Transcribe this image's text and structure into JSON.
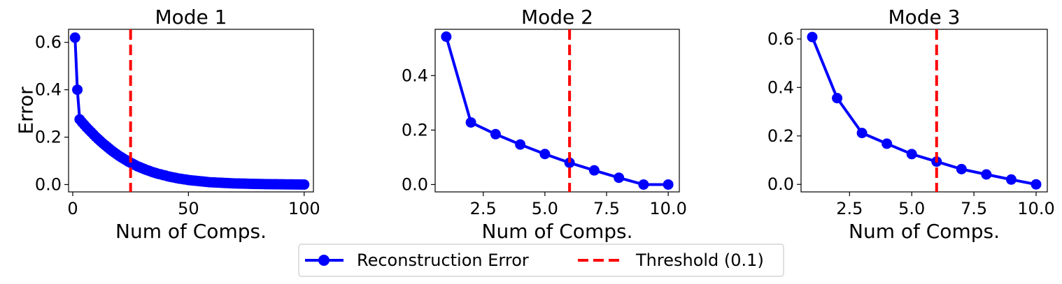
{
  "chart_data": [
    {
      "type": "line",
      "title": "Mode 1",
      "xlabel": "Num of Comps.",
      "ylabel": "Error",
      "xlim": [
        -1.8,
        104
      ],
      "ylim": [
        -0.031,
        0.655
      ],
      "xticks": [
        0,
        50,
        100
      ],
      "xtick_labels": [
        "0",
        "50",
        "100"
      ],
      "yticks": [
        0.0,
        0.2,
        0.4,
        0.6
      ],
      "ytick_labels": [
        "0.0",
        "0.2",
        "0.4",
        "0.6"
      ],
      "threshold_x": 25,
      "series": [
        {
          "name": "Reconstruction Error",
          "color": "#0000ff",
          "x": [
            1,
            2,
            3,
            4,
            5,
            6,
            7,
            8,
            9,
            10,
            11,
            12,
            13,
            14,
            15,
            16,
            17,
            18,
            19,
            20,
            21,
            22,
            23,
            24,
            25,
            26,
            27,
            28,
            29,
            30,
            31,
            32,
            33,
            34,
            35,
            36,
            37,
            38,
            39,
            40,
            41,
            42,
            43,
            44,
            45,
            46,
            47,
            48,
            49,
            50,
            51,
            52,
            53,
            54,
            55,
            56,
            57,
            58,
            59,
            60,
            61,
            62,
            63,
            64,
            65,
            66,
            67,
            68,
            69,
            70,
            71,
            72,
            73,
            74,
            75,
            76,
            77,
            78,
            79,
            80,
            81,
            82,
            83,
            84,
            85,
            86,
            87,
            88,
            89,
            90,
            91,
            92,
            93,
            94,
            95,
            96,
            97,
            98,
            99,
            100
          ],
          "y": [
            0.62,
            0.4,
            0.275,
            0.263,
            0.252,
            0.241,
            0.231,
            0.221,
            0.211,
            0.201,
            0.192,
            0.183,
            0.174,
            0.166,
            0.158,
            0.15,
            0.142,
            0.135,
            0.128,
            0.121,
            0.115,
            0.109,
            0.103,
            0.097,
            0.092,
            0.087,
            0.082,
            0.077,
            0.073,
            0.069,
            0.065,
            0.061,
            0.058,
            0.054,
            0.051,
            0.048,
            0.045,
            0.043,
            0.04,
            0.038,
            0.035,
            0.033,
            0.031,
            0.029,
            0.027,
            0.025,
            0.024,
            0.022,
            0.021,
            0.019,
            0.018,
            0.017,
            0.016,
            0.015,
            0.014,
            0.013,
            0.012,
            0.011,
            0.01,
            0.0095,
            0.009,
            0.0085,
            0.008,
            0.0075,
            0.007,
            0.0065,
            0.006,
            0.0055,
            0.005,
            0.0048,
            0.0045,
            0.0042,
            0.004,
            0.0038,
            0.0035,
            0.0033,
            0.003,
            0.0028,
            0.0026,
            0.0024,
            0.0022,
            0.002,
            0.0018,
            0.0016,
            0.0015,
            0.0014,
            0.0013,
            0.0012,
            0.0011,
            0.001,
            0.0009,
            0.0008,
            0.0007,
            0.0006,
            0.0005,
            0.0004,
            0.0003,
            0.0002,
            0.0001,
            0.0
          ]
        }
      ]
    },
    {
      "type": "line",
      "title": "Mode 2",
      "xlabel": "Num of Comps.",
      "ylabel": "",
      "xlim": [
        0.55,
        10.45
      ],
      "ylim": [
        -0.027,
        0.57
      ],
      "xticks": [
        2.5,
        5.0,
        7.5,
        10.0
      ],
      "xtick_labels": [
        "2.5",
        "5.0",
        "7.5",
        "10.0"
      ],
      "yticks": [
        0.0,
        0.2,
        0.4
      ],
      "ytick_labels": [
        "0.0",
        "0.2",
        "0.4"
      ],
      "threshold_x": 6,
      "series": [
        {
          "name": "Reconstruction Error",
          "color": "#0000ff",
          "x": [
            1,
            2,
            3,
            4,
            5,
            6,
            7,
            8,
            9,
            10
          ],
          "y": [
            0.543,
            0.228,
            0.185,
            0.147,
            0.112,
            0.08,
            0.052,
            0.025,
            0.0,
            0.0
          ]
        }
      ]
    },
    {
      "type": "line",
      "title": "Mode 3",
      "xlabel": "Num of Comps.",
      "ylabel": "",
      "xlim": [
        0.55,
        10.45
      ],
      "ylim": [
        -0.031,
        0.64
      ],
      "xticks": [
        2.5,
        5.0,
        7.5,
        10.0
      ],
      "xtick_labels": [
        "2.5",
        "5.0",
        "7.5",
        "10.0"
      ],
      "yticks": [
        0.0,
        0.2,
        0.4,
        0.6
      ],
      "ytick_labels": [
        "0.0",
        "0.2",
        "0.4",
        "0.6"
      ],
      "threshold_x": 6,
      "series": [
        {
          "name": "Reconstruction Error",
          "color": "#0000ff",
          "x": [
            1,
            2,
            3,
            4,
            5,
            6,
            7,
            8,
            9,
            10
          ],
          "y": [
            0.608,
            0.356,
            0.212,
            0.168,
            0.125,
            0.094,
            0.063,
            0.041,
            0.02,
            0.0
          ]
        }
      ]
    }
  ],
  "legend": {
    "items": [
      {
        "label": "Reconstruction Error",
        "color": "#0000ff",
        "style": "solid-marker"
      },
      {
        "label": "Threshold (0.1)",
        "color": "#ff0000",
        "style": "dashed"
      }
    ]
  }
}
